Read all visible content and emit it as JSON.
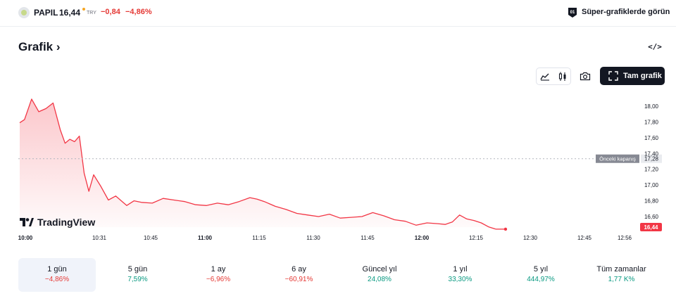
{
  "header": {
    "symbol": "PAPIL",
    "price": "16,44",
    "currency": "TRY",
    "change": "−0,84",
    "change_pct": "−4,86%",
    "super_charts_link": "Süper-grafiklerde görün"
  },
  "section": {
    "title": "Grafik",
    "title_chevron": "›",
    "embed_icon": "</>"
  },
  "toolbar": {
    "fullscreen_label": "Tam grafik",
    "icons": [
      "area-chart-icon",
      "candle-chart-icon",
      "camera-icon",
      "fullscreen-icon"
    ]
  },
  "branding": {
    "logo_text": "TradingView"
  },
  "chart_data": {
    "type": "area",
    "title": "",
    "xlabel": "",
    "ylabel": "",
    "ylim": [
      16.44,
      18.1
    ],
    "x_ticks": [
      "10:00",
      "10:31",
      "10:45",
      "11:00",
      "11:15",
      "11:30",
      "11:45",
      "12:00",
      "12:15",
      "12:30",
      "12:45",
      "12:56"
    ],
    "y_ticks": [
      "18,00",
      "17,80",
      "17,60",
      "17,40",
      "17,20",
      "17,00",
      "16,80",
      "16,60"
    ],
    "previous_close": {
      "label": "Önceki kapanış",
      "value": 17.28,
      "display": "17,28"
    },
    "last_price": {
      "value": 16.44,
      "display": "16,44"
    },
    "line_color": "#f23645",
    "x": [
      "10:00",
      "10:02",
      "10:05",
      "10:08",
      "10:11",
      "10:14",
      "10:17",
      "10:19",
      "10:21",
      "10:23",
      "10:25",
      "10:27",
      "10:29",
      "10:31",
      "10:33",
      "10:35",
      "10:37",
      "10:40",
      "10:42",
      "10:44",
      "10:47",
      "10:50",
      "10:53",
      "10:56",
      "10:59",
      "11:02",
      "11:05",
      "11:08",
      "11:11",
      "11:14",
      "11:16",
      "11:18",
      "11:21",
      "11:24",
      "11:27",
      "11:30",
      "11:33",
      "11:36",
      "11:39",
      "11:42",
      "11:45",
      "11:48",
      "11:51",
      "11:54",
      "11:57",
      "12:00",
      "12:03",
      "12:06",
      "12:08",
      "12:10",
      "12:12",
      "12:14",
      "12:16",
      "12:18",
      "12:20",
      "12:22"
    ],
    "values": [
      17.79,
      17.83,
      18.09,
      17.93,
      17.97,
      18.04,
      17.7,
      17.53,
      17.58,
      17.55,
      17.62,
      17.15,
      16.92,
      17.13,
      16.98,
      16.81,
      16.86,
      16.74,
      16.8,
      16.78,
      16.77,
      16.83,
      16.81,
      16.79,
      16.75,
      16.74,
      16.77,
      16.75,
      16.79,
      16.84,
      16.82,
      16.79,
      16.73,
      16.69,
      16.64,
      16.62,
      16.6,
      16.63,
      16.58,
      16.59,
      16.6,
      16.65,
      16.61,
      16.56,
      16.54,
      16.49,
      16.52,
      16.51,
      16.5,
      16.53,
      16.62,
      16.57,
      16.55,
      16.52,
      16.47,
      16.44
    ]
  },
  "periods": [
    {
      "label": "1 gün",
      "value": "−4,86%",
      "sign": "neg",
      "active": true
    },
    {
      "label": "5 gün",
      "value": "7,59%",
      "sign": "pos",
      "active": false
    },
    {
      "label": "1 ay",
      "value": "−6,96%",
      "sign": "neg",
      "active": false
    },
    {
      "label": "6 ay",
      "value": "−60,91%",
      "sign": "neg",
      "active": false
    },
    {
      "label": "Güncel yıl",
      "value": "24,08%",
      "sign": "pos",
      "active": false
    },
    {
      "label": "1 yıl",
      "value": "33,30%",
      "sign": "pos",
      "active": false
    },
    {
      "label": "5 yıl",
      "value": "444,97%",
      "sign": "pos",
      "active": false
    },
    {
      "label": "Tüm zamanlar",
      "value": "1,77 K%",
      "sign": "pos",
      "active": false
    }
  ]
}
